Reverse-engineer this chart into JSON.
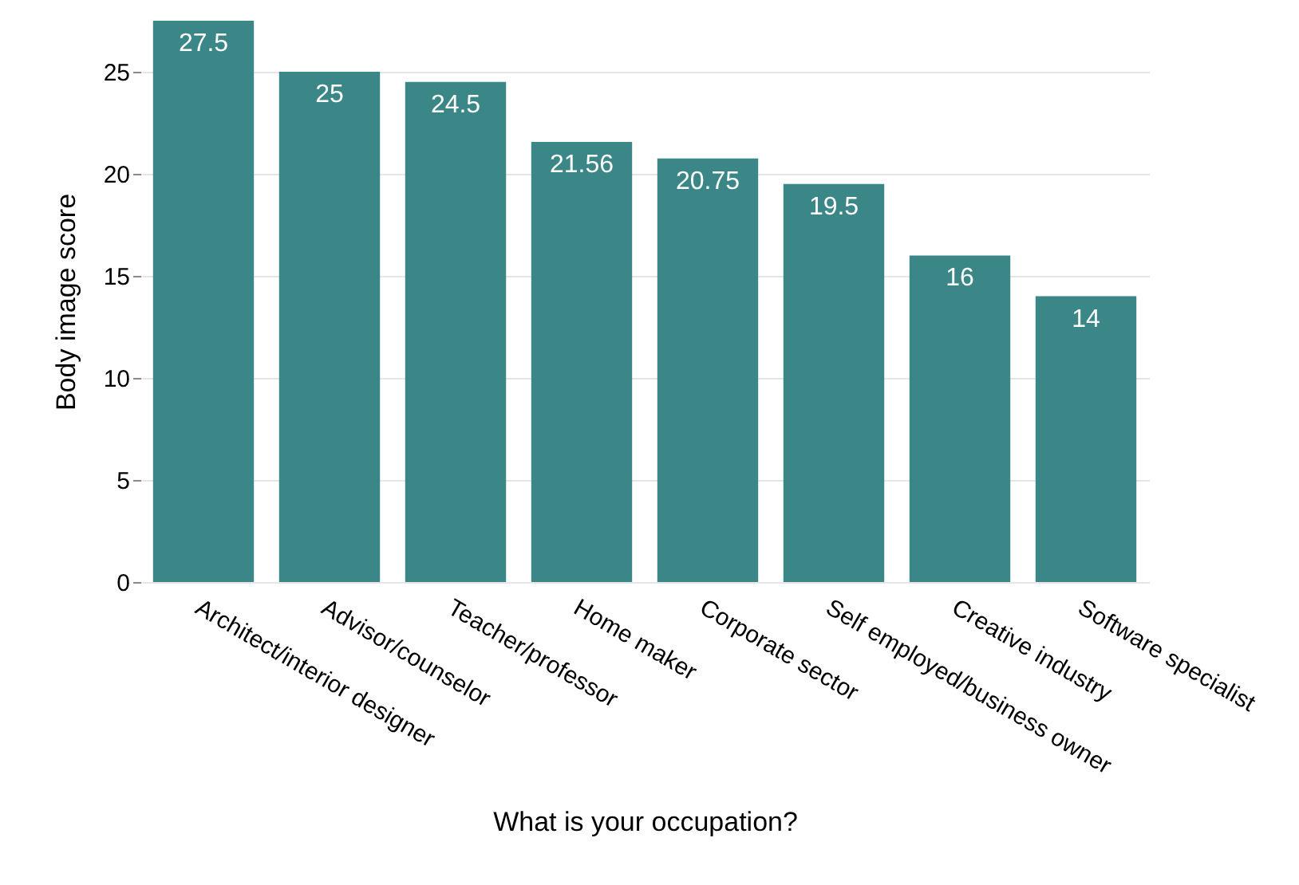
{
  "chart_data": {
    "type": "bar",
    "xlabel": "What is your occupation?",
    "ylabel": "Body image score",
    "categories": [
      "Architect/interior designer",
      "Advisor/counselor",
      "Teacher/professor",
      "Home maker",
      "Corporate sector",
      "Self employed/business owner",
      "Creative industry",
      "Software specialist"
    ],
    "values": [
      27.5,
      25,
      24.5,
      21.56,
      20.75,
      19.5,
      16,
      14
    ],
    "color": "#3b8686",
    "ylim": [
      0,
      27.5
    ],
    "yticks": [
      0,
      5,
      10,
      15,
      20,
      25
    ],
    "grid": "y",
    "data_labels": true
  }
}
